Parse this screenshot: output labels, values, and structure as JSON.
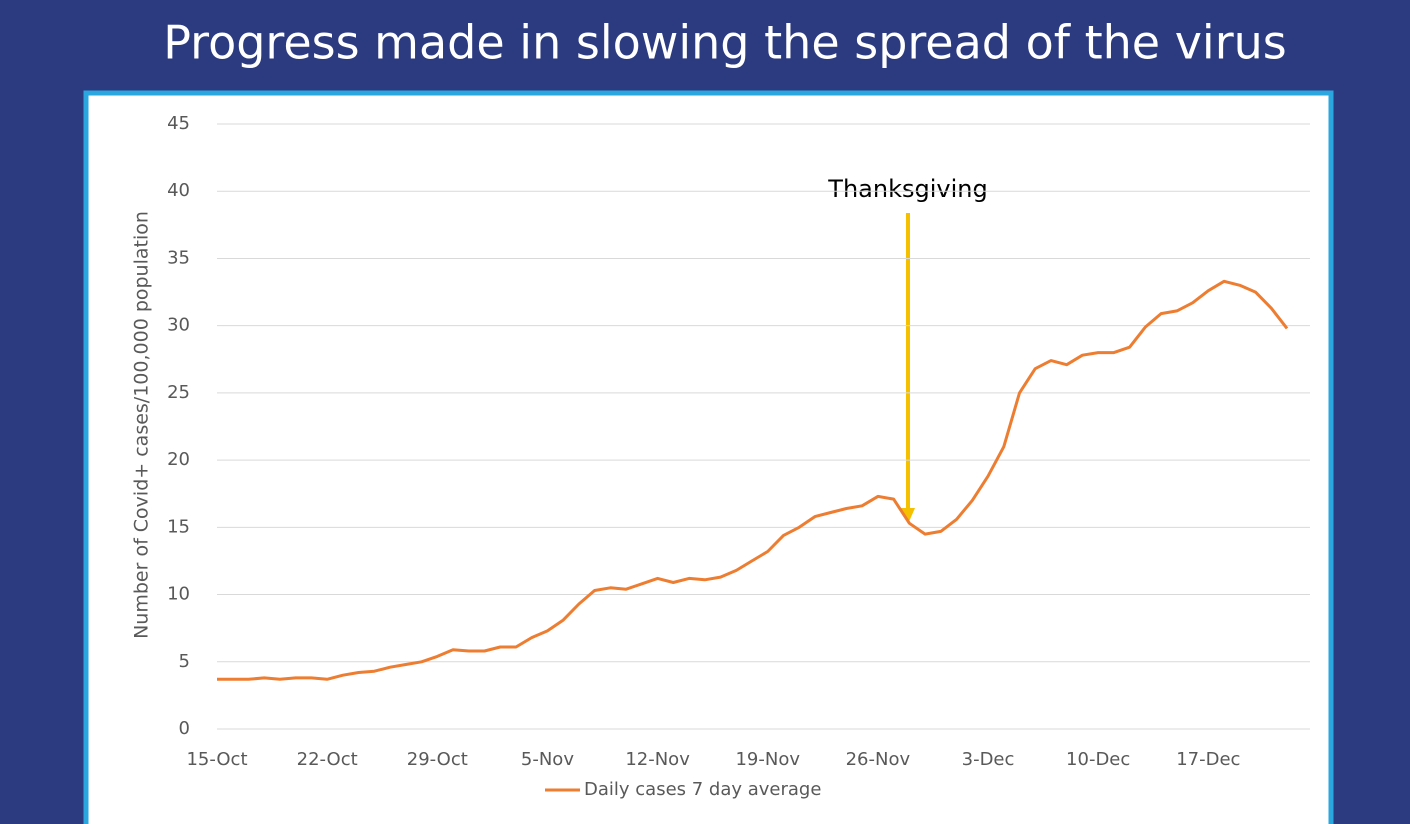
{
  "chart_data": {
    "type": "line",
    "title": "Progress made in slowing the spread of the virus",
    "y_label": "Number of Covid+ cases/100,000 population",
    "annotation": "Thanksgiving",
    "categories": [
      "15-Oct",
      null,
      null,
      null,
      null,
      null,
      null,
      "22-Oct",
      null,
      null,
      null,
      null,
      null,
      null,
      "29-Oct",
      null,
      null,
      null,
      null,
      null,
      null,
      "5-Nov",
      null,
      null,
      null,
      null,
      null,
      null,
      "12-Nov",
      null,
      null,
      null,
      null,
      null,
      null,
      "19-Nov",
      null,
      null,
      null,
      null,
      null,
      null,
      "26-Nov",
      null,
      null,
      null,
      null,
      null,
      null,
      "3-Dec",
      null,
      null,
      null,
      null,
      null,
      null,
      "10-Dec",
      null,
      null,
      null,
      null,
      null,
      null,
      "17-Dec",
      null,
      null,
      null,
      null,
      null
    ],
    "series": [
      {
        "name": "Daily cases 7 day average",
        "color": "#ed7d31",
        "values": [
          3.7,
          3.7,
          3.7,
          3.8,
          3.7,
          3.8,
          3.8,
          3.7,
          4.0,
          4.2,
          4.3,
          4.6,
          4.8,
          5.0,
          5.4,
          5.9,
          5.8,
          5.8,
          6.1,
          6.1,
          6.8,
          7.3,
          8.1,
          9.3,
          10.3,
          10.5,
          10.4,
          10.8,
          11.2,
          10.9,
          11.2,
          11.1,
          11.3,
          11.8,
          12.5,
          13.2,
          14.4,
          15.0,
          15.8,
          16.1,
          16.4,
          16.6,
          17.3,
          17.1,
          15.3,
          14.5,
          14.7,
          15.6,
          17.0,
          18.8,
          21.0,
          25.0,
          26.8,
          27.4,
          27.1,
          27.8,
          28.0,
          28.0,
          28.4,
          29.9,
          30.9,
          31.1,
          31.7,
          32.6,
          33.3,
          33.0,
          32.5,
          31.3,
          29.8
        ]
      }
    ],
    "ylim": [
      0,
      45
    ],
    "yticks": [
      0,
      5,
      10,
      15,
      20,
      25,
      30,
      35,
      40,
      45
    ],
    "grid": true
  }
}
